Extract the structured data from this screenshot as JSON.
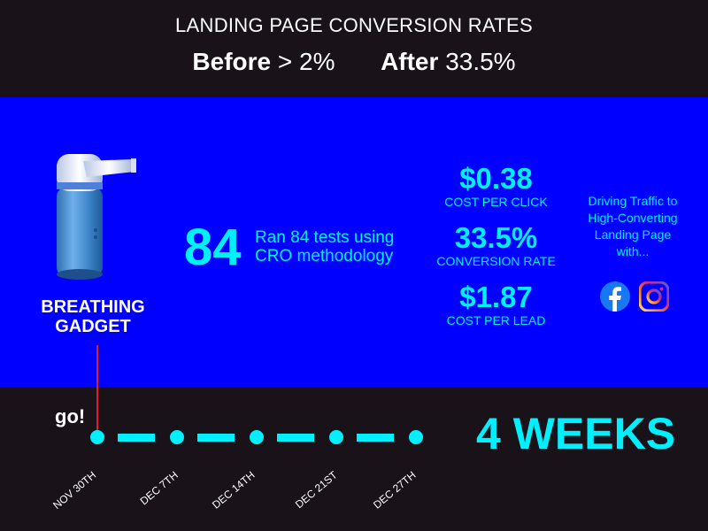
{
  "header": {
    "title": "LANDING PAGE CONVERSION RATES",
    "before_label": "Before",
    "before_value": "> 2%",
    "after_label": "After",
    "after_value": "33.5%"
  },
  "product": {
    "name_line1": "BREATHING",
    "name_line2": "GADGET",
    "image_icon": "breathing-gadget-inhaler"
  },
  "tests": {
    "count": "84",
    "line1": "Ran 84 tests using",
    "line2": "CRO methodology"
  },
  "metrics": [
    {
      "value": "$0.38",
      "label": "COST PER CLICK"
    },
    {
      "value": "33.5%",
      "label": "CONVERSION RATE"
    },
    {
      "value": "$1.87",
      "label": "COST PER LEAD"
    }
  ],
  "traffic": {
    "line1": "Driving Traffic to",
    "line2": "High-Converting",
    "line3": "Landing Page",
    "line4": "with...",
    "icons": [
      "facebook-icon",
      "instagram-icon"
    ]
  },
  "timeline": {
    "start_label": "go!",
    "duration": "4 WEEKS",
    "dates": [
      "NOV 30TH",
      "DEC 7TH",
      "DEC 14TH",
      "DEC 21ST",
      "DEC 27TH"
    ]
  },
  "colors": {
    "background": "#1a1219",
    "band": "#0000fe",
    "accent": "#00f0ff",
    "marker": "#e11d2b",
    "text": "#ffffff"
  }
}
